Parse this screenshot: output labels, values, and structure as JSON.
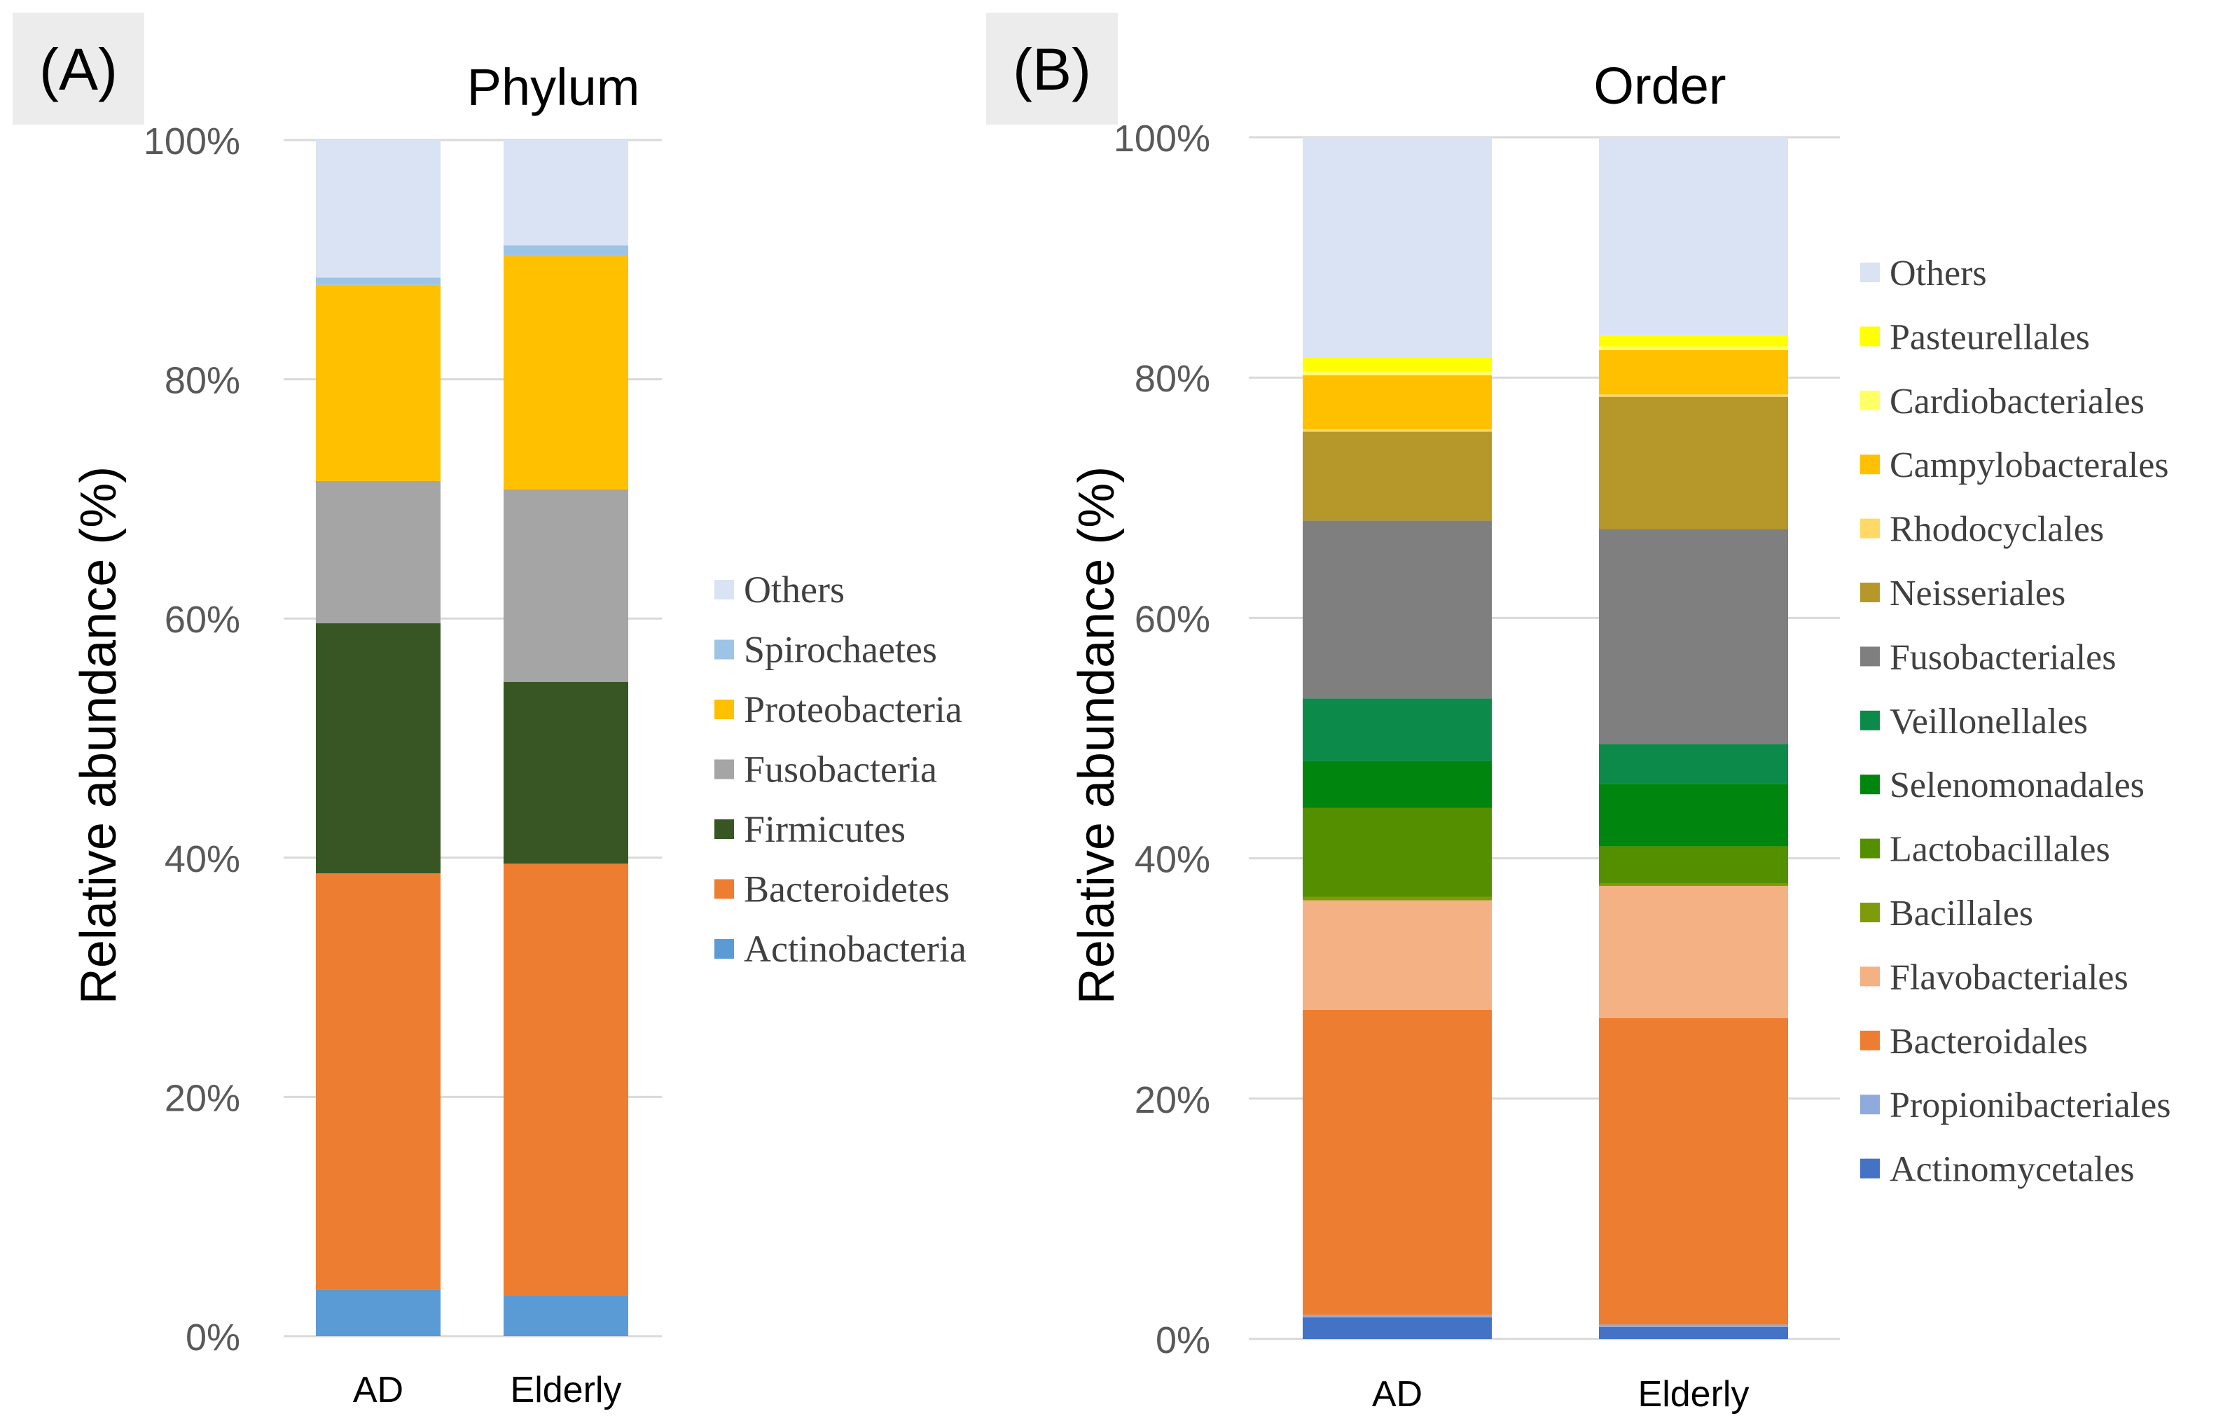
{
  "panels": [
    {
      "label": "(A)",
      "title": "Phylum"
    },
    {
      "label": "(B)",
      "title": "Order"
    }
  ],
  "chart_data": [
    {
      "type": "stacked-bar-percent",
      "title": "Phylum",
      "panel_label": "(A)",
      "ylabel": "Relative abundance (%)",
      "xlabel": "",
      "ylim": [
        0,
        100
      ],
      "yticks": [
        0,
        20,
        40,
        60,
        80,
        100
      ],
      "ytick_labels": [
        "0%",
        "20%",
        "40%",
        "60%",
        "80%",
        "100%"
      ],
      "categories": [
        "AD",
        "Elderly"
      ],
      "legend_position": "right",
      "series": [
        {
          "name": "Actinobacteria",
          "color": "#5b9bd5",
          "values": [
            3.9,
            3.4
          ]
        },
        {
          "name": "Bacteroidetes",
          "color": "#ed7d31",
          "values": [
            34.8,
            36.1
          ]
        },
        {
          "name": "Firmicutes",
          "color": "#375623",
          "values": [
            20.9,
            15.2
          ]
        },
        {
          "name": "Fusobacteria",
          "color": "#a5a5a5",
          "values": [
            11.9,
            16.1
          ]
        },
        {
          "name": "Proteobacteria",
          "color": "#ffc000",
          "values": [
            16.4,
            19.5
          ]
        },
        {
          "name": "Spirochaetes",
          "color": "#9dc3e6",
          "values": [
            0.6,
            0.9
          ]
        },
        {
          "name": "Others",
          "color": "#dae3f3",
          "values": [
            11.5,
            8.8
          ]
        }
      ]
    },
    {
      "type": "stacked-bar-percent",
      "title": "Order",
      "panel_label": "(B)",
      "ylabel": "Relative abundance (%)",
      "xlabel": "",
      "ylim": [
        0,
        100
      ],
      "yticks": [
        0,
        20,
        40,
        60,
        80,
        100
      ],
      "ytick_labels": [
        "0%",
        "20%",
        "40%",
        "60%",
        "80%",
        "100%"
      ],
      "categories": [
        "AD",
        "Elderly"
      ],
      "legend_position": "right",
      "series": [
        {
          "name": "Actinomycetales",
          "color": "#4472c4",
          "values": [
            1.8,
            1.0
          ]
        },
        {
          "name": "Propionibacteriales",
          "color": "#8faadc",
          "values": [
            0.2,
            0.2
          ]
        },
        {
          "name": "Bacteroidales",
          "color": "#ed7d31",
          "values": [
            25.4,
            25.5
          ]
        },
        {
          "name": "Flavobacteriales",
          "color": "#f4b183",
          "values": [
            9.1,
            11.0
          ]
        },
        {
          "name": "Bacillales",
          "color": "#7f9a0a",
          "values": [
            0.3,
            0.2
          ]
        },
        {
          "name": "Lactobacillales",
          "color": "#548f00",
          "values": [
            7.4,
            3.1
          ]
        },
        {
          "name": "Selenomonadales",
          "color": "#00860f",
          "values": [
            3.9,
            5.2
          ]
        },
        {
          "name": "Veillonellales",
          "color": "#0c8a4a",
          "values": [
            5.2,
            3.3
          ]
        },
        {
          "name": "Fusobacteriales",
          "color": "#7f7f7f",
          "values": [
            14.8,
            17.9
          ]
        },
        {
          "name": "Neisseriales",
          "color": "#b5972a",
          "values": [
            7.4,
            11.0
          ]
        },
        {
          "name": "Rhodocyclales",
          "color": "#ffd966",
          "values": [
            0.2,
            0.2
          ]
        },
        {
          "name": "Campylobacterales",
          "color": "#ffc000",
          "values": [
            4.5,
            3.7
          ]
        },
        {
          "name": "Cardiobacteriales",
          "color": "#ffff66",
          "values": [
            0.3,
            0.3
          ]
        },
        {
          "name": "Pasteurellales",
          "color": "#ffff00",
          "values": [
            1.2,
            0.9
          ]
        },
        {
          "name": "Others",
          "color": "#dae3f3",
          "values": [
            18.3,
            16.5
          ]
        }
      ]
    }
  ]
}
